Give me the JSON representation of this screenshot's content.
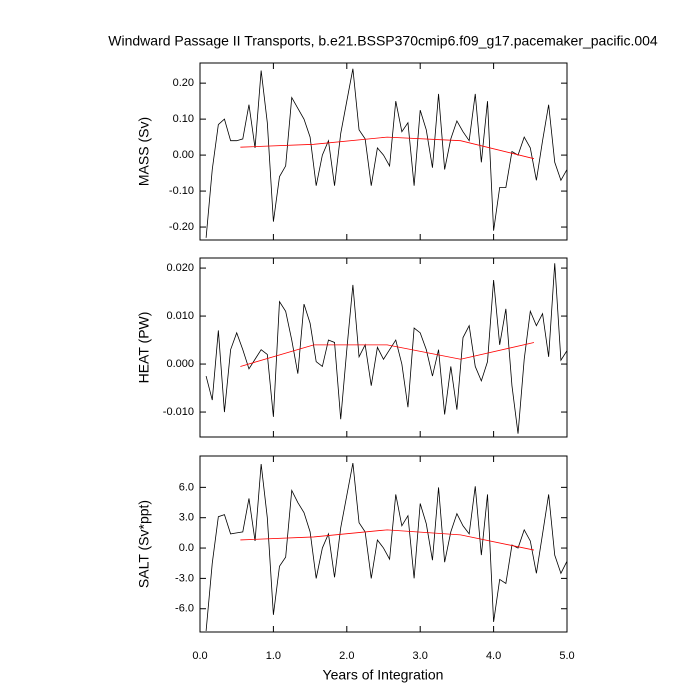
{
  "chart_data": [
    {
      "type": "line",
      "title": "Windward Passage II Transports, b.e21.BSSP370cmip6.f09_g17.pacemaker_pacific.004",
      "ylabel": "MASS (Sv)",
      "xlim": [
        0,
        5.0
      ],
      "ylim": [
        -0.236,
        0.256
      ],
      "yticks": [
        {
          "value": 0.2,
          "label": "0.20"
        },
        {
          "value": 0.1,
          "label": "0.10"
        },
        {
          "value": 0,
          "label": "0.00"
        },
        {
          "value": -0.1,
          "label": "-0.10"
        },
        {
          "value": -0.2,
          "label": "-0.20"
        }
      ],
      "series": [
        {
          "color": "#000000",
          "x": [
            0.083,
            0.167,
            0.25,
            0.333,
            0.417,
            0.5,
            0.583,
            0.667,
            0.75,
            0.833,
            0.917,
            1.0,
            1.083,
            1.167,
            1.25,
            1.333,
            1.417,
            1.5,
            1.583,
            1.667,
            1.75,
            1.833,
            1.917,
            2.0,
            2.083,
            2.167,
            2.25,
            2.333,
            2.417,
            2.5,
            2.583,
            2.667,
            2.75,
            2.833,
            2.917,
            3.0,
            3.083,
            3.167,
            3.25,
            3.333,
            3.417,
            3.5,
            3.583,
            3.667,
            3.75,
            3.833,
            3.917,
            4.0,
            4.083,
            4.167,
            4.25,
            4.333,
            4.417,
            4.5,
            4.583,
            4.667,
            4.75,
            4.833,
            4.917,
            5.0
          ],
          "values": [
            -0.23,
            -0.04,
            0.085,
            0.1,
            0.04,
            0.04,
            0.045,
            0.14,
            0.02,
            0.235,
            0.09,
            -0.185,
            -0.06,
            -0.03,
            0.16,
            0.13,
            0.1,
            0.05,
            -0.085,
            0.0,
            0.04,
            -0.085,
            0.06,
            0.15,
            0.24,
            0.07,
            0.045,
            -0.085,
            0.02,
            0.0,
            -0.03,
            0.15,
            0.065,
            0.09,
            -0.085,
            0.125,
            0.07,
            -0.035,
            0.17,
            -0.04,
            0.045,
            0.095,
            0.065,
            0.04,
            0.17,
            -0.02,
            0.15,
            -0.21,
            -0.09,
            -0.09,
            0.01,
            0.0,
            0.05,
            0.02,
            -0.07,
            0.04,
            0.14,
            -0.02,
            -0.07,
            -0.04
          ]
        },
        {
          "color": "#ff0000",
          "x": [
            0.55,
            1.55,
            2.55,
            3.55,
            4.55
          ],
          "values": [
            0.022,
            0.03,
            0.05,
            0.04,
            -0.01
          ]
        }
      ]
    },
    {
      "type": "line",
      "ylabel": "HEAT (PW)",
      "xlim": [
        0,
        5.0
      ],
      "ylim": [
        -0.0152,
        0.0221
      ],
      "yticks": [
        {
          "value": 0.02,
          "label": "0.020"
        },
        {
          "value": 0.01,
          "label": "0.010"
        },
        {
          "value": 0,
          "label": "0.000"
        },
        {
          "value": -0.01,
          "label": "-0.010"
        }
      ],
      "series": [
        {
          "color": "#000000",
          "x": [
            0.083,
            0.167,
            0.25,
            0.333,
            0.417,
            0.5,
            0.583,
            0.667,
            0.75,
            0.833,
            0.917,
            1.0,
            1.083,
            1.167,
            1.25,
            1.333,
            1.417,
            1.5,
            1.583,
            1.667,
            1.75,
            1.833,
            1.917,
            2.0,
            2.083,
            2.167,
            2.25,
            2.333,
            2.417,
            2.5,
            2.583,
            2.667,
            2.75,
            2.833,
            2.917,
            3.0,
            3.083,
            3.167,
            3.25,
            3.333,
            3.417,
            3.5,
            3.583,
            3.667,
            3.75,
            3.833,
            3.917,
            4.0,
            4.083,
            4.167,
            4.25,
            4.333,
            4.417,
            4.5,
            4.583,
            4.667,
            4.75,
            4.833,
            4.917,
            5.0
          ],
          "values": [
            -0.0025,
            -0.0075,
            0.007,
            -0.01,
            0.003,
            0.0065,
            0.003,
            -0.001,
            0.001,
            0.003,
            0.002,
            -0.011,
            0.013,
            0.011,
            0.005,
            -0.002,
            0.0125,
            0.0085,
            0.0005,
            -0.0005,
            0.005,
            0.0045,
            -0.0115,
            0.003,
            0.0165,
            0.0015,
            0.004,
            -0.0045,
            0.0035,
            0.001,
            0.003,
            0.005,
            0.0,
            -0.009,
            0.0075,
            0.0065,
            0.003,
            -0.0025,
            0.003,
            -0.0105,
            -0.0005,
            -0.0095,
            0.0055,
            0.008,
            -0.0005,
            -0.0035,
            0.0005,
            0.0175,
            0.004,
            0.0115,
            -0.0045,
            -0.0145,
            0.001,
            0.011,
            0.008,
            0.0105,
            0.0015,
            0.021,
            0.0008,
            0.0028
          ]
        },
        {
          "color": "#ff0000",
          "x": [
            0.55,
            1.55,
            2.55,
            3.55,
            4.55
          ],
          "values": [
            -0.0005,
            0.004,
            0.004,
            0.001,
            0.0045
          ]
        }
      ]
    },
    {
      "type": "line",
      "ylabel": "SALT (Sv*ppt)",
      "xlabel": "Years of Integration",
      "xlim": [
        0,
        5.0
      ],
      "ylim": [
        -8.3,
        9.1
      ],
      "xticks": [
        {
          "value": 0,
          "label": "0.0"
        },
        {
          "value": 1,
          "label": "1.0"
        },
        {
          "value": 2,
          "label": "2.0"
        },
        {
          "value": 3,
          "label": "3.0"
        },
        {
          "value": 4,
          "label": "4.0"
        },
        {
          "value": 5,
          "label": "5.0"
        }
      ],
      "yticks": [
        {
          "value": 6,
          "label": "6.0"
        },
        {
          "value": 3,
          "label": "3.0"
        },
        {
          "value": 0,
          "label": "0.0"
        },
        {
          "value": -3,
          "label": "-3.0"
        },
        {
          "value": -6,
          "label": "-6.0"
        }
      ],
      "series": [
        {
          "color": "#000000",
          "x": [
            0.083,
            0.167,
            0.25,
            0.333,
            0.417,
            0.5,
            0.583,
            0.667,
            0.75,
            0.833,
            0.917,
            1.0,
            1.083,
            1.167,
            1.25,
            1.333,
            1.417,
            1.5,
            1.583,
            1.667,
            1.75,
            1.833,
            1.917,
            2.0,
            2.083,
            2.167,
            2.25,
            2.333,
            2.417,
            2.5,
            2.583,
            2.667,
            2.75,
            2.833,
            2.917,
            3.0,
            3.083,
            3.167,
            3.25,
            3.333,
            3.417,
            3.5,
            3.583,
            3.667,
            3.75,
            3.833,
            3.917,
            4.0,
            4.083,
            4.167,
            4.25,
            4.333,
            4.417,
            4.5,
            4.583,
            4.667,
            4.75,
            4.833,
            4.917,
            5.0
          ],
          "values": [
            -8.2,
            -1.5,
            3.1,
            3.3,
            1.4,
            1.5,
            1.6,
            4.9,
            0.7,
            8.3,
            3.0,
            -6.6,
            -1.8,
            -0.9,
            5.7,
            4.5,
            3.5,
            1.6,
            -3.0,
            0.0,
            1.4,
            -2.9,
            2.0,
            5.2,
            8.4,
            2.5,
            1.6,
            -3.0,
            0.8,
            0.0,
            -1.1,
            5.3,
            2.2,
            3.2,
            -3.0,
            4.4,
            2.4,
            -1.2,
            6.0,
            -1.4,
            1.6,
            3.4,
            2.2,
            1.4,
            6.1,
            -0.7,
            5.3,
            -7.3,
            -3.1,
            -3.5,
            0.3,
            0.0,
            1.8,
            0.7,
            -2.5,
            1.4,
            5.3,
            -0.7,
            -2.5,
            -1.3
          ]
        },
        {
          "color": "#ff0000",
          "x": [
            0.55,
            1.55,
            2.55,
            3.55,
            4.55
          ],
          "values": [
            0.8,
            1.1,
            1.8,
            1.3,
            -0.2
          ]
        }
      ]
    }
  ]
}
